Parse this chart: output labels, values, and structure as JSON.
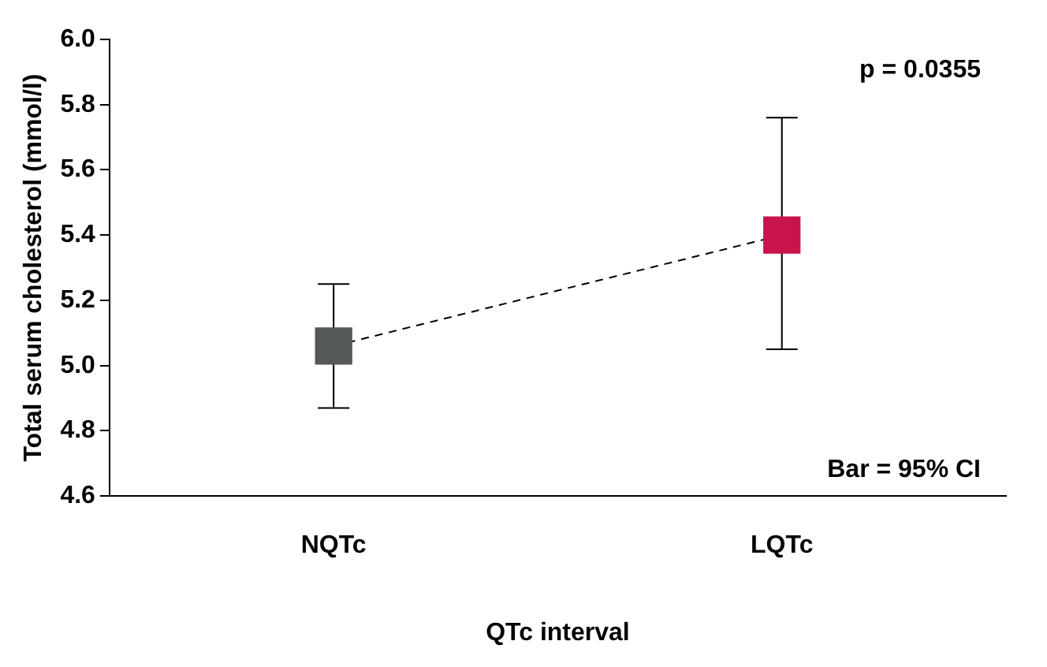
{
  "chart_data": {
    "type": "line",
    "xlabel": "QTc interval",
    "ylabel": "Total serum cholesterol (mmol/l)",
    "categories": [
      "NQTc",
      "LQTc"
    ],
    "series": [
      {
        "colors": [
          "#555859",
          "#c8144a"
        ],
        "values": [
          5.06,
          5.4
        ],
        "errors": [
          [
            4.87,
            5.25
          ],
          [
            5.05,
            5.76
          ]
        ]
      }
    ],
    "ylim": [
      4.6,
      6.0
    ],
    "yticks": [
      4.6,
      4.8,
      {
        "value": 5,
        "label": "5.0"
      },
      5.2,
      5.4,
      5.6,
      5.8,
      {
        "value": 6,
        "label": "6.0"
      }
    ],
    "marker": "square",
    "line_style": "dashed",
    "grid": false,
    "legend": false,
    "annotations": [
      "p = 0.0355",
      "Bar = 95% CI"
    ]
  }
}
